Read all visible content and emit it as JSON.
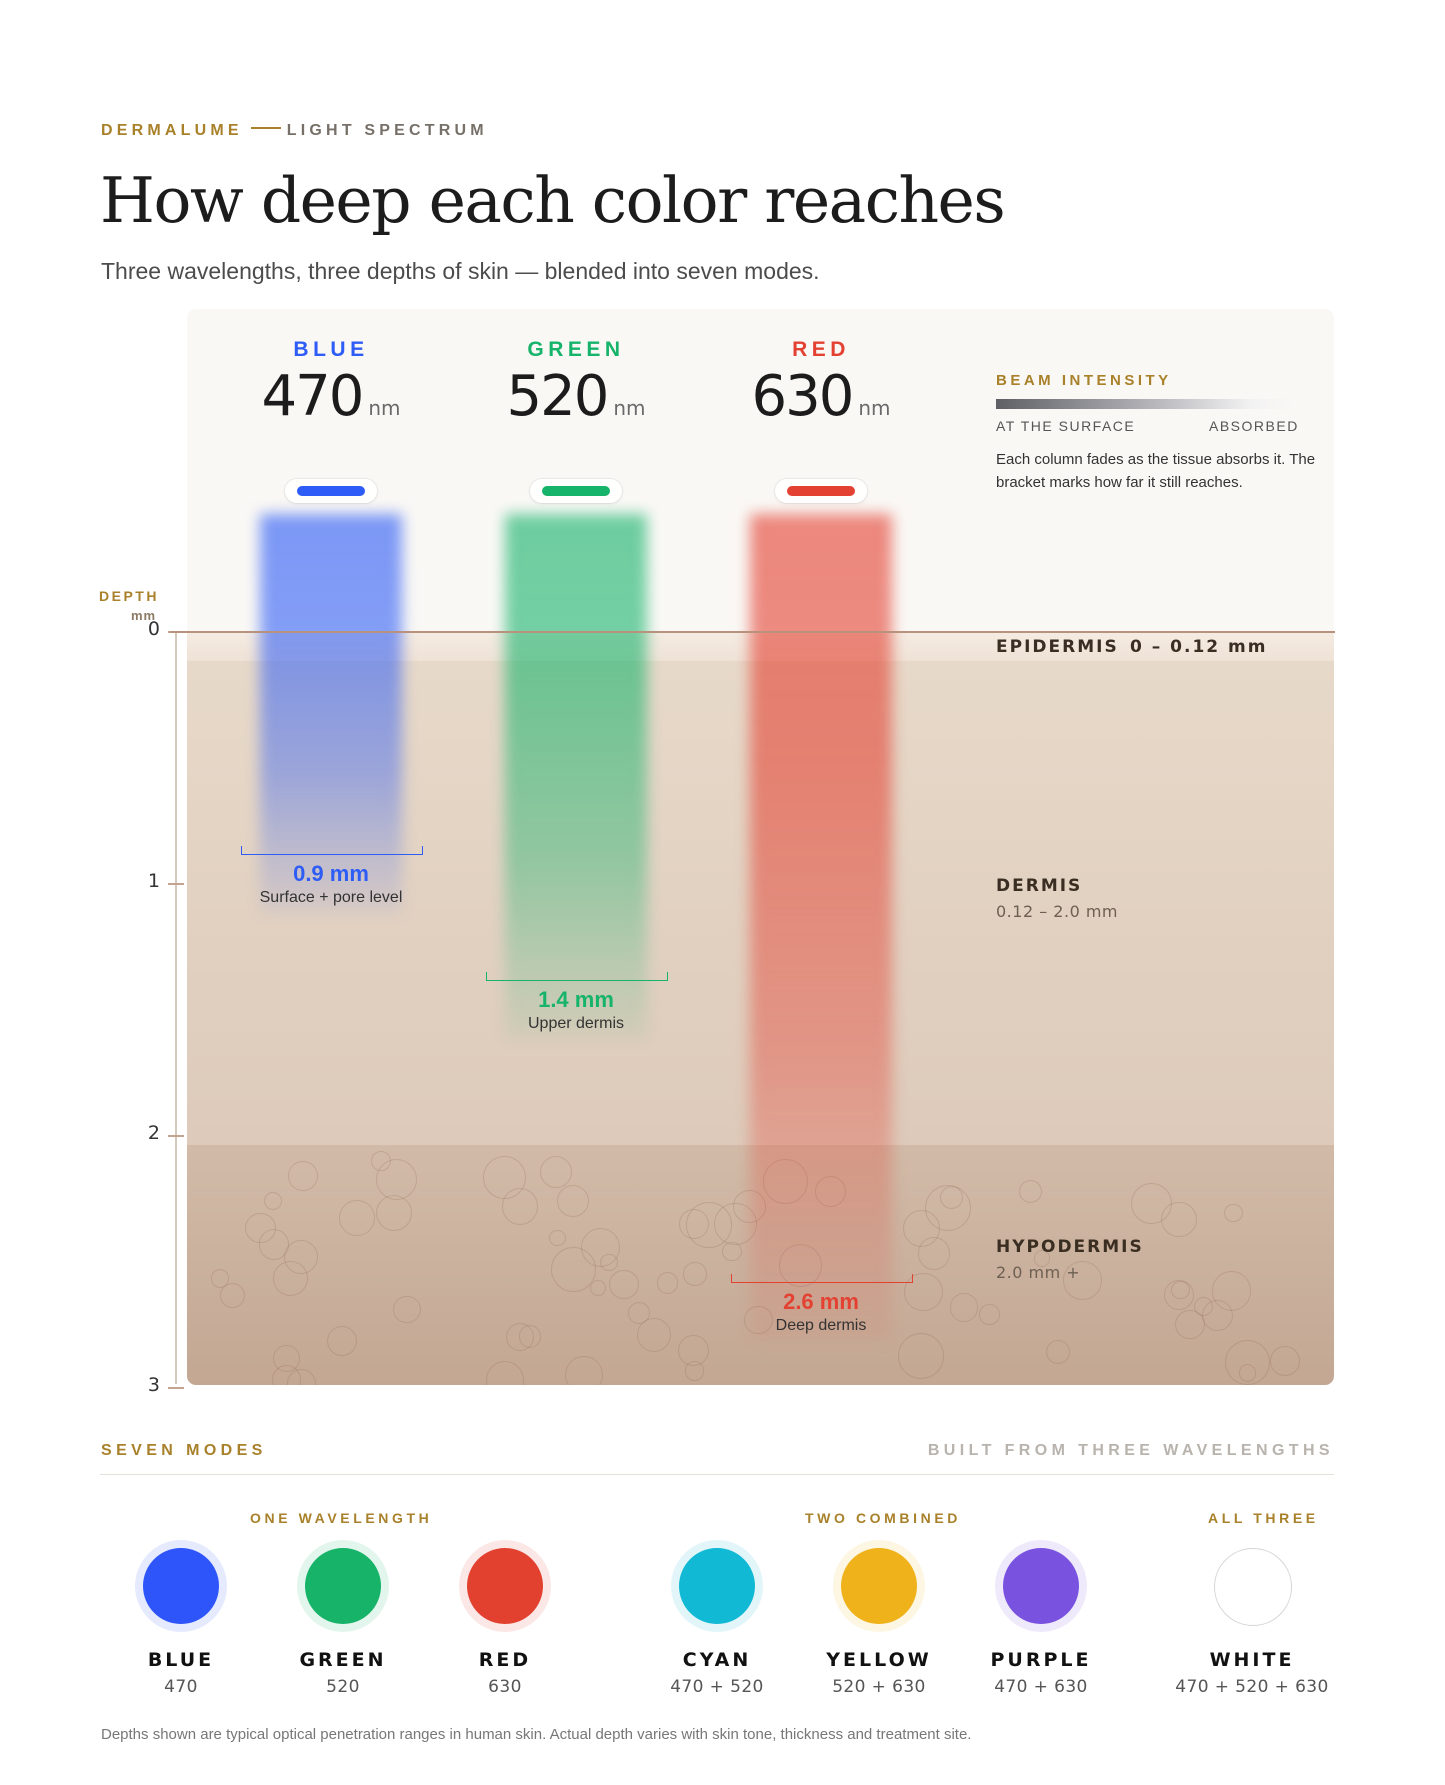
{
  "header": {
    "brand": "DERMALUME",
    "section": "LIGHT SPECTRUM",
    "title": "How deep each color reaches",
    "subtitle": "Three wavelengths, three depths of skin — blended into seven modes."
  },
  "chart_data": {
    "type": "bar",
    "categories": [
      "BLUE",
      "GREEN",
      "RED"
    ],
    "series": [
      {
        "wavelengths_nm": [
          470,
          520,
          630
        ],
        "values": [
          0.9,
          1.4,
          2.6
        ],
        "labels": [
          "0.9 mm",
          "1.4 mm",
          "2.6 mm"
        ],
        "descriptions": [
          "Surface + pore level",
          "Upper dermis",
          "Deep dermis"
        ],
        "colors": [
          "#2d5cf6",
          "#16b36b",
          "#e34233"
        ]
      }
    ],
    "unit_label": "nm",
    "ylabel": "DEPTH",
    "yunit": "mm",
    "ylim": [
      0,
      3
    ],
    "yticks": [
      0,
      1,
      2,
      3
    ],
    "layers": [
      {
        "name": "EPIDERMIS",
        "range": "0 – 0.12 mm",
        "from": 0,
        "to": 0.12
      },
      {
        "name": "DERMIS",
        "range": "0.12 – 2.0 mm",
        "from": 0.12,
        "to": 2.0
      },
      {
        "name": "HYPODERMIS",
        "range": "2.0 mm +",
        "from": 2.0,
        "to": 3.0
      }
    ],
    "legend": {
      "title": "BEAM INTENSITY",
      "left": "AT THE SURFACE",
      "right": "ABSORBED",
      "note": "Each column fades as the tissue absorbs it. The bracket marks how far it still reaches."
    }
  },
  "modes": {
    "title": "SEVEN MODES",
    "side": "BUILT FROM THREE WAVELENGTHS",
    "groups": [
      "ONE WAVELENGTH",
      "TWO COMBINED",
      "ALL THREE"
    ],
    "items": [
      {
        "name": "BLUE",
        "wl": "470",
        "color": "#2d55fa"
      },
      {
        "name": "GREEN",
        "wl": "520",
        "color": "#16b368"
      },
      {
        "name": "RED",
        "wl": "630",
        "color": "#e2412f"
      },
      {
        "name": "CYAN",
        "wl": "470 + 520",
        "color": "#12b9d4"
      },
      {
        "name": "YELLOW",
        "wl": "520 + 630",
        "color": "#f0b21b"
      },
      {
        "name": "PURPLE",
        "wl": "470 + 630",
        "color": "#7a52e0"
      },
      {
        "name": "WHITE",
        "wl": "470 + 520 + 630",
        "color": "#ffffff"
      }
    ]
  },
  "footnote": "Depths shown are typical optical penetration ranges in human skin. Actual depth varies with skin tone, thickness and treatment site."
}
